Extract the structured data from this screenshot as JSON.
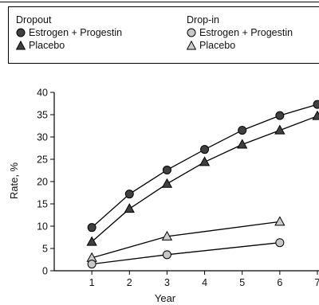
{
  "chart_data": {
    "type": "line",
    "xlabel": "Year",
    "ylabel": "Rate, %",
    "x": [
      1,
      2,
      3,
      4,
      5,
      6,
      7
    ],
    "xlim": [
      0,
      7
    ],
    "ylim": [
      0,
      40
    ],
    "yticks": [
      0,
      5,
      10,
      15,
      20,
      25,
      30,
      35,
      40
    ],
    "grid": false,
    "legend": {
      "placement": "top",
      "groups": [
        {
          "title": "Dropout",
          "entries": [
            "Estrogen + Progestin",
            "Placebo"
          ]
        },
        {
          "title": "Drop-in",
          "entries": [
            "Estrogen + Progestin",
            "Placebo"
          ]
        }
      ]
    },
    "series": [
      {
        "group": "Dropout",
        "name": "Estrogen + Progestin",
        "marker": "circle",
        "fill": "#404040",
        "points": [
          [
            1,
            9.7
          ],
          [
            2,
            17.2
          ],
          [
            3,
            22.6
          ],
          [
            4,
            27.2
          ],
          [
            5,
            31.5
          ],
          [
            6,
            34.8
          ],
          [
            7,
            37.3
          ]
        ]
      },
      {
        "group": "Dropout",
        "name": "Placebo",
        "marker": "triangle",
        "fill": "#404040",
        "points": [
          [
            1,
            6.5
          ],
          [
            2,
            13.9
          ],
          [
            3,
            19.5
          ],
          [
            4,
            24.4
          ],
          [
            5,
            28.3
          ],
          [
            6,
            31.5
          ],
          [
            7,
            34.7
          ]
        ]
      },
      {
        "group": "Drop-in",
        "name": "Placebo",
        "marker": "triangle",
        "fill": "#cccccc",
        "points": [
          [
            1,
            2.9
          ],
          [
            3,
            7.7
          ],
          [
            6,
            11.0
          ]
        ]
      },
      {
        "group": "Drop-in",
        "name": "Estrogen + Progestin",
        "marker": "circle",
        "fill": "#c8c8c8",
        "points": [
          [
            1,
            1.5
          ],
          [
            3,
            3.6
          ],
          [
            6,
            6.3
          ]
        ]
      }
    ]
  }
}
